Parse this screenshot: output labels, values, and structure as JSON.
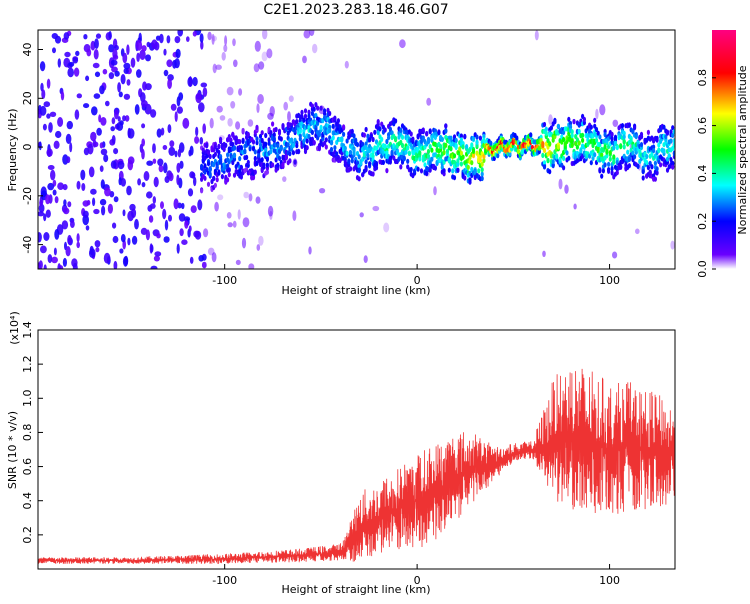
{
  "title": "C2E1.2023.283.18.46.G07",
  "chart_data": [
    {
      "type": "heatmap",
      "xlabel": "Height of straight line (km)",
      "ylabel": "Frequency (Hz)",
      "xlim": [
        -197,
        134
      ],
      "ylim": [
        -50,
        48
      ],
      "xticks": [
        -100,
        0,
        100
      ],
      "yticks": [
        -40,
        -20,
        0,
        20,
        40
      ],
      "colorbar": {
        "label": "Normalized spectral amplitude",
        "range": [
          0,
          1
        ],
        "ticks": [
          0.0,
          0.2,
          0.4,
          0.6,
          0.8
        ],
        "colormap": [
          "#ffffff",
          "#6a00ff",
          "#0000ff",
          "#00ffff",
          "#00ff00",
          "#ffff00",
          "#ff0000",
          "#ff0080"
        ]
      },
      "ridge": {
        "description_points_x": [
          -110,
          -90,
          -70,
          -60,
          -50,
          -40,
          -30,
          -20,
          -10,
          0,
          10,
          20,
          30,
          40,
          60,
          70,
          80,
          90,
          100,
          110,
          120,
          130
        ],
        "freq": [
          -8,
          -3,
          0,
          6,
          10,
          2,
          -4,
          0,
          3,
          -4,
          0,
          -3,
          -5,
          0,
          1,
          0,
          3,
          1,
          -3,
          2,
          -5,
          1
        ],
        "peak_amplitude": [
          0.25,
          0.3,
          0.3,
          0.35,
          0.35,
          0.35,
          0.35,
          0.4,
          0.45,
          0.45,
          0.5,
          0.55,
          0.65,
          0.85,
          0.9,
          0.7,
          0.55,
          0.5,
          0.5,
          0.45,
          0.35,
          0.4
        ]
      }
    },
    {
      "type": "line",
      "xlabel": "Height of straight line (km)",
      "ylabel": "SNR (10 * v/v)",
      "yscale_label": "(x10⁴)",
      "xlim": [
        -197,
        134
      ],
      "ylim": [
        0,
        1.4
      ],
      "xticks": [
        -100,
        0,
        100
      ],
      "yticks": [
        0.2,
        0.4,
        0.6,
        0.8,
        1.0,
        1.2,
        1.4
      ],
      "color": "#ee3333",
      "series": [
        {
          "x": [
            -197,
            -150,
            -100,
            -60,
            -40,
            -35,
            -30,
            -20,
            -10,
            0,
            10,
            20,
            30,
            40,
            50,
            60,
            65,
            70,
            80,
            90,
            100,
            110,
            120,
            134
          ],
          "y": [
            0.05,
            0.05,
            0.06,
            0.08,
            0.1,
            0.15,
            0.25,
            0.3,
            0.35,
            0.4,
            0.45,
            0.55,
            0.6,
            0.62,
            0.68,
            0.7,
            0.72,
            0.75,
            0.8,
            0.75,
            0.7,
            0.72,
            0.7,
            0.68
          ],
          "spread": [
            0.02,
            0.02,
            0.03,
            0.04,
            0.05,
            0.12,
            0.2,
            0.22,
            0.25,
            0.28,
            0.3,
            0.28,
            0.2,
            0.1,
            0.06,
            0.05,
            0.2,
            0.35,
            0.45,
            0.42,
            0.4,
            0.38,
            0.35,
            0.3
          ]
        }
      ]
    }
  ]
}
